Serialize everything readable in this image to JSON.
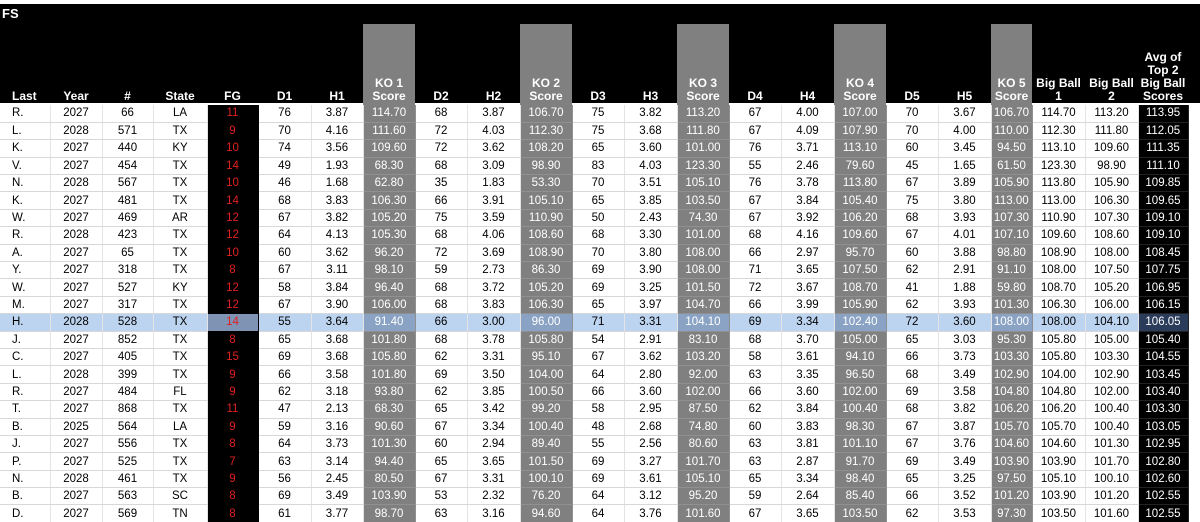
{
  "title": "FS",
  "table": {
    "columns": [
      "Last",
      "Year",
      "#",
      "State",
      "FG",
      "D1",
      "H1",
      "KO 1\nScore",
      "D2",
      "H2",
      "KO 2\nScore",
      "D3",
      "H3",
      "KO 3\nScore",
      "D4",
      "H4",
      "KO 4\nScore",
      "D5",
      "H5",
      "KO 5\nScore",
      "Big Ball\n1",
      "Big Ball\n2",
      "Avg of\nTop 2\nBig Ball\nScores"
    ],
    "rows": [
      [
        "R.",
        "2027",
        "66",
        "LA",
        "11",
        "76",
        "3.87",
        "114.70",
        "68",
        "3.87",
        "106.70",
        "75",
        "3.82",
        "113.20",
        "67",
        "4.00",
        "107.00",
        "70",
        "3.67",
        "106.70",
        "114.70",
        "113.20",
        "113.95"
      ],
      [
        "L.",
        "2028",
        "571",
        "TX",
        "9",
        "70",
        "4.16",
        "111.60",
        "72",
        "4.03",
        "112.30",
        "75",
        "3.68",
        "111.80",
        "67",
        "4.09",
        "107.90",
        "70",
        "4.00",
        "110.00",
        "112.30",
        "111.80",
        "112.05"
      ],
      [
        "K.",
        "2027",
        "440",
        "KY",
        "10",
        "74",
        "3.56",
        "109.60",
        "72",
        "3.62",
        "108.20",
        "65",
        "3.60",
        "101.00",
        "76",
        "3.71",
        "113.10",
        "60",
        "3.45",
        "94.50",
        "113.10",
        "109.60",
        "111.35"
      ],
      [
        "V.",
        "2027",
        "454",
        "TX",
        "14",
        "49",
        "1.93",
        "68.30",
        "68",
        "3.09",
        "98.90",
        "83",
        "4.03",
        "123.30",
        "55",
        "2.46",
        "79.60",
        "45",
        "1.65",
        "61.50",
        "123.30",
        "98.90",
        "111.10"
      ],
      [
        "N.",
        "2028",
        "567",
        "TX",
        "10",
        "46",
        "1.68",
        "62.80",
        "35",
        "1.83",
        "53.30",
        "70",
        "3.51",
        "105.10",
        "76",
        "3.78",
        "113.80",
        "67",
        "3.89",
        "105.90",
        "113.80",
        "105.90",
        "109.85"
      ],
      [
        "K.",
        "2027",
        "481",
        "TX",
        "14",
        "68",
        "3.83",
        "106.30",
        "66",
        "3.91",
        "105.10",
        "65",
        "3.85",
        "103.50",
        "67",
        "3.84",
        "105.40",
        "75",
        "3.80",
        "113.00",
        "113.00",
        "106.30",
        "109.65"
      ],
      [
        "W.",
        "2027",
        "469",
        "AR",
        "12",
        "67",
        "3.82",
        "105.20",
        "75",
        "3.59",
        "110.90",
        "50",
        "2.43",
        "74.30",
        "67",
        "3.92",
        "106.20",
        "68",
        "3.93",
        "107.30",
        "110.90",
        "107.30",
        "109.10"
      ],
      [
        "R.",
        "2028",
        "423",
        "TX",
        "12",
        "64",
        "4.13",
        "105.30",
        "68",
        "4.06",
        "108.60",
        "68",
        "3.30",
        "101.00",
        "68",
        "4.16",
        "109.60",
        "67",
        "4.01",
        "107.10",
        "109.60",
        "108.60",
        "109.10"
      ],
      [
        "A.",
        "2027",
        "65",
        "TX",
        "10",
        "60",
        "3.62",
        "96.20",
        "72",
        "3.69",
        "108.90",
        "70",
        "3.80",
        "108.00",
        "66",
        "2.97",
        "95.70",
        "60",
        "3.88",
        "98.80",
        "108.90",
        "108.00",
        "108.45"
      ],
      [
        "Y.",
        "2027",
        "318",
        "TX",
        "8",
        "67",
        "3.11",
        "98.10",
        "59",
        "2.73",
        "86.30",
        "69",
        "3.90",
        "108.00",
        "71",
        "3.65",
        "107.50",
        "62",
        "2.91",
        "91.10",
        "108.00",
        "107.50",
        "107.75"
      ],
      [
        "W.",
        "2027",
        "527",
        "KY",
        "12",
        "58",
        "3.84",
        "96.40",
        "68",
        "3.72",
        "105.20",
        "69",
        "3.25",
        "101.50",
        "72",
        "3.67",
        "108.70",
        "41",
        "1.88",
        "59.80",
        "108.70",
        "105.20",
        "106.95"
      ],
      [
        "M.",
        "2027",
        "317",
        "TX",
        "12",
        "67",
        "3.90",
        "106.00",
        "68",
        "3.83",
        "106.30",
        "65",
        "3.97",
        "104.70",
        "66",
        "3.99",
        "105.90",
        "62",
        "3.93",
        "101.30",
        "106.30",
        "106.00",
        "106.15"
      ],
      [
        "H.",
        "2028",
        "528",
        "TX",
        "14",
        "55",
        "3.64",
        "91.40",
        "66",
        "3.00",
        "96.00",
        "71",
        "3.31",
        "104.10",
        "69",
        "3.34",
        "102.40",
        "72",
        "3.60",
        "108.00",
        "108.00",
        "104.10",
        "106.05"
      ],
      [
        "J.",
        "2027",
        "852",
        "TX",
        "8",
        "65",
        "3.68",
        "101.80",
        "68",
        "3.78",
        "105.80",
        "54",
        "2.91",
        "83.10",
        "68",
        "3.70",
        "105.00",
        "65",
        "3.03",
        "95.30",
        "105.80",
        "105.00",
        "105.40"
      ],
      [
        "C.",
        "2027",
        "405",
        "TX",
        "15",
        "69",
        "3.68",
        "105.80",
        "62",
        "3.31",
        "95.10",
        "67",
        "3.62",
        "103.20",
        "58",
        "3.61",
        "94.10",
        "66",
        "3.73",
        "103.30",
        "105.80",
        "103.30",
        "104.55"
      ],
      [
        "L.",
        "2028",
        "399",
        "TX",
        "9",
        "66",
        "3.58",
        "101.80",
        "69",
        "3.50",
        "104.00",
        "64",
        "2.80",
        "92.00",
        "63",
        "3.35",
        "96.50",
        "68",
        "3.49",
        "102.90",
        "104.00",
        "102.90",
        "103.45"
      ],
      [
        "R.",
        "2027",
        "484",
        "FL",
        "9",
        "62",
        "3.18",
        "93.80",
        "62",
        "3.85",
        "100.50",
        "66",
        "3.60",
        "102.00",
        "66",
        "3.60",
        "102.00",
        "69",
        "3.58",
        "104.80",
        "104.80",
        "102.00",
        "103.40"
      ],
      [
        "T.",
        "2027",
        "868",
        "TX",
        "11",
        "47",
        "2.13",
        "68.30",
        "65",
        "3.42",
        "99.20",
        "58",
        "2.95",
        "87.50",
        "62",
        "3.84",
        "100.40",
        "68",
        "3.82",
        "106.20",
        "106.20",
        "100.40",
        "103.30"
      ],
      [
        "B.",
        "2025",
        "564",
        "LA",
        "9",
        "59",
        "3.16",
        "90.60",
        "67",
        "3.34",
        "100.40",
        "48",
        "2.68",
        "74.80",
        "60",
        "3.83",
        "98.30",
        "67",
        "3.87",
        "105.70",
        "105.70",
        "100.40",
        "103.05"
      ],
      [
        "J.",
        "2027",
        "556",
        "TX",
        "8",
        "64",
        "3.73",
        "101.30",
        "60",
        "2.94",
        "89.40",
        "55",
        "2.56",
        "80.60",
        "63",
        "3.81",
        "101.10",
        "67",
        "3.76",
        "104.60",
        "104.60",
        "101.30",
        "102.95"
      ],
      [
        "P.",
        "2027",
        "525",
        "TX",
        "7",
        "63",
        "3.14",
        "94.40",
        "65",
        "3.65",
        "101.50",
        "69",
        "3.27",
        "101.70",
        "63",
        "2.87",
        "91.70",
        "69",
        "3.49",
        "103.90",
        "103.90",
        "101.70",
        "102.80"
      ],
      [
        "N.",
        "2028",
        "461",
        "TX",
        "9",
        "56",
        "2.45",
        "80.50",
        "67",
        "3.31",
        "100.10",
        "69",
        "3.61",
        "105.10",
        "65",
        "3.34",
        "98.40",
        "65",
        "3.25",
        "97.50",
        "105.10",
        "100.10",
        "102.60"
      ],
      [
        "B.",
        "2027",
        "563",
        "SC",
        "8",
        "69",
        "3.49",
        "103.90",
        "53",
        "2.32",
        "76.20",
        "64",
        "3.12",
        "95.20",
        "59",
        "2.64",
        "85.40",
        "66",
        "3.52",
        "101.20",
        "103.90",
        "101.20",
        "102.55"
      ],
      [
        "D.",
        "2027",
        "569",
        "TN",
        "8",
        "61",
        "3.77",
        "98.70",
        "63",
        "3.16",
        "94.60",
        "64",
        "3.76",
        "101.60",
        "67",
        "3.65",
        "103.50",
        "62",
        "3.53",
        "97.30",
        "103.50",
        "101.60",
        "102.55"
      ]
    ]
  }
}
